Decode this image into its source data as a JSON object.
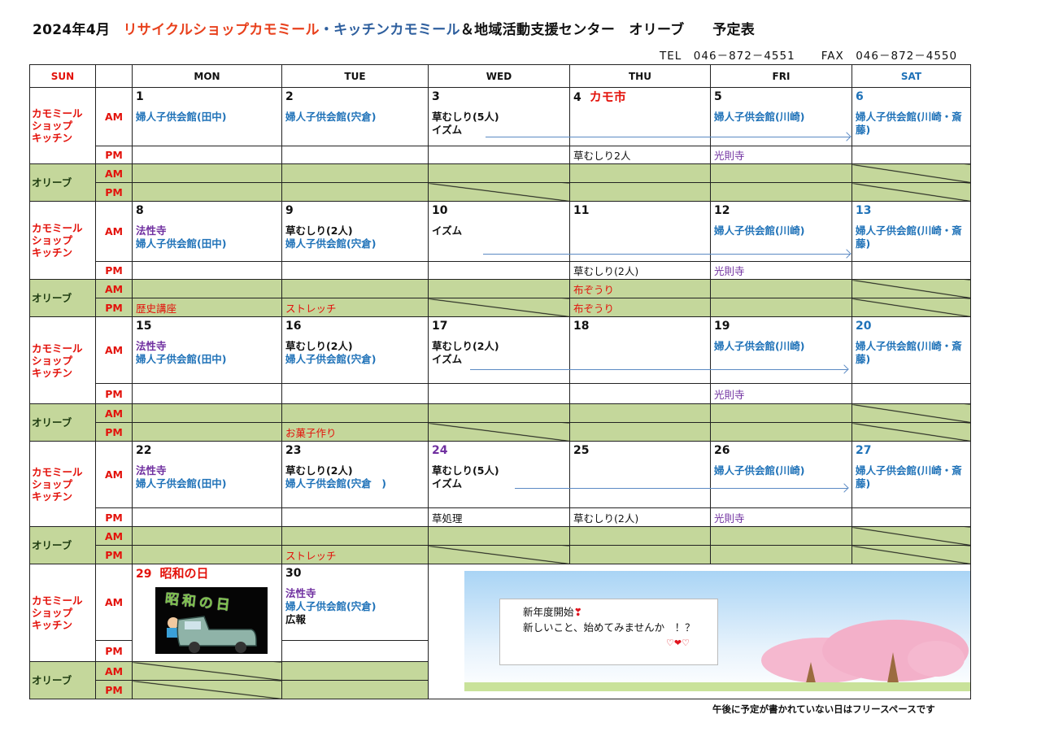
{
  "title": {
    "month": "2024年4月",
    "shop": "リサイクルショップカモミール",
    "kitchen": "・キッチンカモミール",
    "center": "＆地域活動支援センター　オリーブ　　予定表"
  },
  "contact": {
    "tel": "TEL　046－872－4551",
    "fax": "FAX　046－872－4550"
  },
  "colors": {
    "red": "#e3120b",
    "blue": "#1f72b8",
    "purple": "#7030a0",
    "black": "#111111",
    "orange": "#e8401c",
    "navy": "#2e5f9e",
    "green_text": "#1d3b10",
    "olive_bg": "#c4d79b",
    "arrow": "#5b8ac4"
  },
  "header": {
    "sun": {
      "label": "SUN",
      "color": "red"
    },
    "days": [
      {
        "label": "MON",
        "color": "black"
      },
      {
        "label": "TUE",
        "color": "black"
      },
      {
        "label": "WED",
        "color": "black"
      },
      {
        "label": "THU",
        "color": "black"
      },
      {
        "label": "FRI",
        "color": "black"
      },
      {
        "label": "SAT",
        "color": "blue"
      }
    ]
  },
  "labels": {
    "kamo": "カモミール\nショップ\nキッチン",
    "olive": "オリーブ",
    "am": "AM",
    "pm": "PM"
  },
  "weeks": [
    {
      "days": [
        {
          "date": "1",
          "date_color": "black",
          "am": [
            {
              "t": "婦人子供会館(田中)",
              "c": "blue"
            }
          ]
        },
        {
          "date": "2",
          "date_color": "black",
          "am": [
            {
              "t": "婦人子供会館(宍倉)",
              "c": "blue"
            }
          ]
        },
        {
          "date": "3",
          "date_color": "black",
          "am": [
            {
              "t": "草むしり(5人)",
              "c": "black"
            },
            {
              "t": "イズム",
              "c": "black"
            }
          ],
          "olive_pm_closed": true
        },
        {
          "date": "4",
          "date_color": "black",
          "extra": "カモ市",
          "pm": [
            {
              "t": "草むしり2人",
              "c": "black"
            }
          ]
        },
        {
          "date": "5",
          "date_color": "black",
          "am": [
            {
              "t": "婦人子供会館(川崎)",
              "c": "blue"
            }
          ],
          "pm": [
            {
              "t": "光則寺",
              "c": "purple"
            }
          ]
        },
        {
          "date": "6",
          "date_color": "blue",
          "am": [
            {
              "t": "婦人子供会館(川崎・斎藤)",
              "c": "blue"
            }
          ],
          "olive_am_closed": true,
          "olive_pm_closed": true
        }
      ]
    },
    {
      "days": [
        {
          "date": "8",
          "date_color": "black",
          "am": [
            {
              "t": "法性寺",
              "c": "purple"
            },
            {
              "t": "婦人子供会館(田中)",
              "c": "blue"
            }
          ],
          "olive_pm": [
            {
              "t": "歴史講座",
              "c": "red"
            }
          ]
        },
        {
          "date": "9",
          "date_color": "black",
          "am": [
            {
              "t": "草むしり(2人)",
              "c": "black"
            },
            {
              "t": "婦人子供会館(宍倉)",
              "c": "blue"
            }
          ],
          "olive_pm": [
            {
              "t": "ストレッチ",
              "c": "red"
            }
          ]
        },
        {
          "date": "10",
          "date_color": "black",
          "am": [
            {
              "t": "イズム",
              "c": "black"
            }
          ],
          "olive_pm_closed": true
        },
        {
          "date": "11",
          "date_color": "black",
          "pm": [
            {
              "t": "草むしり(2人)",
              "c": "black"
            }
          ],
          "olive_am": [
            {
              "t": "布ぞうり",
              "c": "red"
            }
          ],
          "olive_pm": [
            {
              "t": "布ぞうり",
              "c": "red"
            }
          ]
        },
        {
          "date": "12",
          "date_color": "black",
          "am": [
            {
              "t": "婦人子供会館(川崎)",
              "c": "blue"
            }
          ],
          "pm": [
            {
              "t": "光則寺",
              "c": "purple"
            }
          ]
        },
        {
          "date": "13",
          "date_color": "blue",
          "am": [
            {
              "t": "婦人子供会館(川崎・斎藤)",
              "c": "blue"
            }
          ],
          "olive_am_closed": true,
          "olive_pm_closed": true
        }
      ]
    },
    {
      "days": [
        {
          "date": "15",
          "date_color": "black",
          "am": [
            {
              "t": "法性寺",
              "c": "purple"
            },
            {
              "t": "婦人子供会館(田中)",
              "c": "blue"
            }
          ]
        },
        {
          "date": "16",
          "date_color": "black",
          "am": [
            {
              "t": "草むしり(2人)",
              "c": "black"
            },
            {
              "t": "婦人子供会館(宍倉)",
              "c": "blue"
            }
          ],
          "olive_pm": [
            {
              "t": "お菓子作り",
              "c": "red"
            }
          ]
        },
        {
          "date": "17",
          "date_color": "black",
          "am": [
            {
              "t": "草むしり(2人)",
              "c": "black"
            },
            {
              "t": "イズム",
              "c": "black"
            }
          ],
          "olive_pm_closed": true
        },
        {
          "date": "18",
          "date_color": "black"
        },
        {
          "date": "19",
          "date_color": "black",
          "am": [
            {
              "t": "婦人子供会館(川崎)",
              "c": "blue"
            }
          ],
          "pm": [
            {
              "t": "光則寺",
              "c": "purple"
            }
          ]
        },
        {
          "date": "20",
          "date_color": "blue",
          "am": [
            {
              "t": "婦人子供会館(川崎・斎藤)",
              "c": "blue"
            }
          ],
          "olive_am_closed": true,
          "olive_pm_closed": true
        }
      ]
    },
    {
      "days": [
        {
          "date": "22",
          "date_color": "black",
          "am": [
            {
              "t": "法性寺",
              "c": "purple"
            },
            {
              "t": "婦人子供会館(田中)",
              "c": "blue"
            }
          ]
        },
        {
          "date": "23",
          "date_color": "black",
          "am": [
            {
              "t": "草むしり(2人)",
              "c": "black"
            },
            {
              "t": "婦人子供会館(宍倉　)",
              "c": "blue"
            }
          ],
          "olive_pm": [
            {
              "t": "ストレッチ",
              "c": "red"
            }
          ]
        },
        {
          "date": "24",
          "date_color": "purple",
          "am": [
            {
              "t": "草むしり(5人)",
              "c": "black"
            },
            {
              "t": "イズム",
              "c": "black"
            }
          ],
          "pm": [
            {
              "t": "草処理",
              "c": "black"
            }
          ],
          "olive_pm_closed": true
        },
        {
          "date": "25",
          "date_color": "black",
          "pm": [
            {
              "t": "草むしり(2人)",
              "c": "black"
            }
          ]
        },
        {
          "date": "26",
          "date_color": "black",
          "am": [
            {
              "t": "婦人子供会館(川崎)",
              "c": "blue"
            }
          ],
          "pm": [
            {
              "t": "光則寺",
              "c": "purple"
            }
          ]
        },
        {
          "date": "27",
          "date_color": "blue",
          "am": [
            {
              "t": "婦人子供会館(川崎・斎藤)",
              "c": "blue"
            }
          ],
          "olive_am_closed": true,
          "olive_pm_closed": true
        }
      ]
    },
    {
      "days": [
        {
          "date": "29",
          "date_color": "red",
          "extra": "昭和の日",
          "image": "showa-day-car",
          "olive_am_closed": true,
          "olive_pm_closed": true
        },
        {
          "date": "30",
          "date_color": "black",
          "am": [
            {
              "t": "法性寺",
              "c": "purple"
            },
            {
              "t": "婦人子供会館(宍倉)",
              "c": "blue"
            },
            {
              "t": "広報",
              "c": "black"
            }
          ]
        }
      ]
    }
  ],
  "showa_image_text": "昭和の日",
  "message": {
    "line1": "新年度開始",
    "mark": "❣",
    "line2": "新しいこと、始めてみませんか　！？",
    "hearts": "♡❤♡"
  },
  "footer_note": "午後に予定が書かれていない日はフリースペースです"
}
